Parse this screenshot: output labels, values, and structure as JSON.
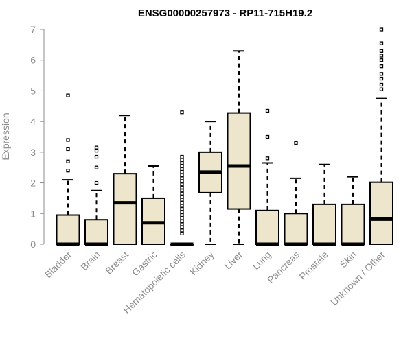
{
  "chart_data": {
    "type": "boxplot",
    "title": "ENSG00000257973 - RP11-715H19.2",
    "ylabel": "Expression",
    "xlabel": "",
    "ylim": [
      0,
      7
    ],
    "yticks": [
      0,
      1,
      2,
      3,
      4,
      5,
      6,
      7
    ],
    "box_fill": "#ede6cc",
    "categories": [
      "Bladder",
      "Brain",
      "Breast",
      "Gastric",
      "Hematopoietic cells",
      "Kidney",
      "Liver",
      "Lung",
      "Pancreas",
      "Prostate",
      "Skin",
      "Unknown / Other"
    ],
    "boxes": [
      {
        "q1": 0,
        "median": 0,
        "q3": 0.95,
        "whisker_low": 0,
        "whisker_high": 2.1,
        "outliers": [
          2.4,
          2.7,
          3.1,
          3.4,
          4.85
        ]
      },
      {
        "q1": 0,
        "median": 0,
        "q3": 0.8,
        "whisker_low": 0,
        "whisker_high": 1.75,
        "outliers": [
          2.0,
          2.5,
          2.85,
          3.05,
          3.15
        ]
      },
      {
        "q1": 0,
        "median": 1.35,
        "q3": 2.3,
        "whisker_low": 0,
        "whisker_high": 4.2,
        "outliers": []
      },
      {
        "q1": 0,
        "median": 0.7,
        "q3": 1.5,
        "whisker_low": 0,
        "whisker_high": 2.55,
        "outliers": []
      },
      {
        "q1": 0,
        "median": 0,
        "q3": 0,
        "whisker_low": 0,
        "whisker_high": 0,
        "outliers": [
          0.35,
          0.45,
          0.55,
          0.65,
          0.75,
          0.85,
          0.95,
          1.05,
          1.15,
          1.25,
          1.35,
          1.45,
          1.55,
          1.65,
          1.75,
          1.85,
          1.95,
          2.05,
          2.15,
          2.25,
          2.35,
          2.45,
          2.55,
          2.65,
          2.75,
          2.85,
          4.3
        ]
      },
      {
        "q1": 1.68,
        "median": 2.35,
        "q3": 3.0,
        "whisker_low": 0,
        "whisker_high": 4.0,
        "outliers": []
      },
      {
        "q1": 1.15,
        "median": 2.55,
        "q3": 4.28,
        "whisker_low": 0,
        "whisker_high": 6.3,
        "outliers": []
      },
      {
        "q1": 0,
        "median": 0,
        "q3": 1.1,
        "whisker_low": 0,
        "whisker_high": 2.65,
        "outliers": [
          2.8,
          3.5,
          4.35
        ]
      },
      {
        "q1": 0,
        "median": 0,
        "q3": 1.0,
        "whisker_low": 0,
        "whisker_high": 2.15,
        "outliers": [
          3.3
        ]
      },
      {
        "q1": 0,
        "median": 0,
        "q3": 1.3,
        "whisker_low": 0,
        "whisker_high": 2.6,
        "outliers": []
      },
      {
        "q1": 0,
        "median": 0,
        "q3": 1.3,
        "whisker_low": 0,
        "whisker_high": 2.2,
        "outliers": []
      },
      {
        "q1": 0,
        "median": 0.82,
        "q3": 2.02,
        "whisker_low": 0,
        "whisker_high": 4.75,
        "outliers": [
          5.05,
          5.2,
          5.4,
          5.55,
          5.8,
          6.0,
          6.15,
          6.3,
          6.55,
          7.0
        ]
      }
    ]
  }
}
